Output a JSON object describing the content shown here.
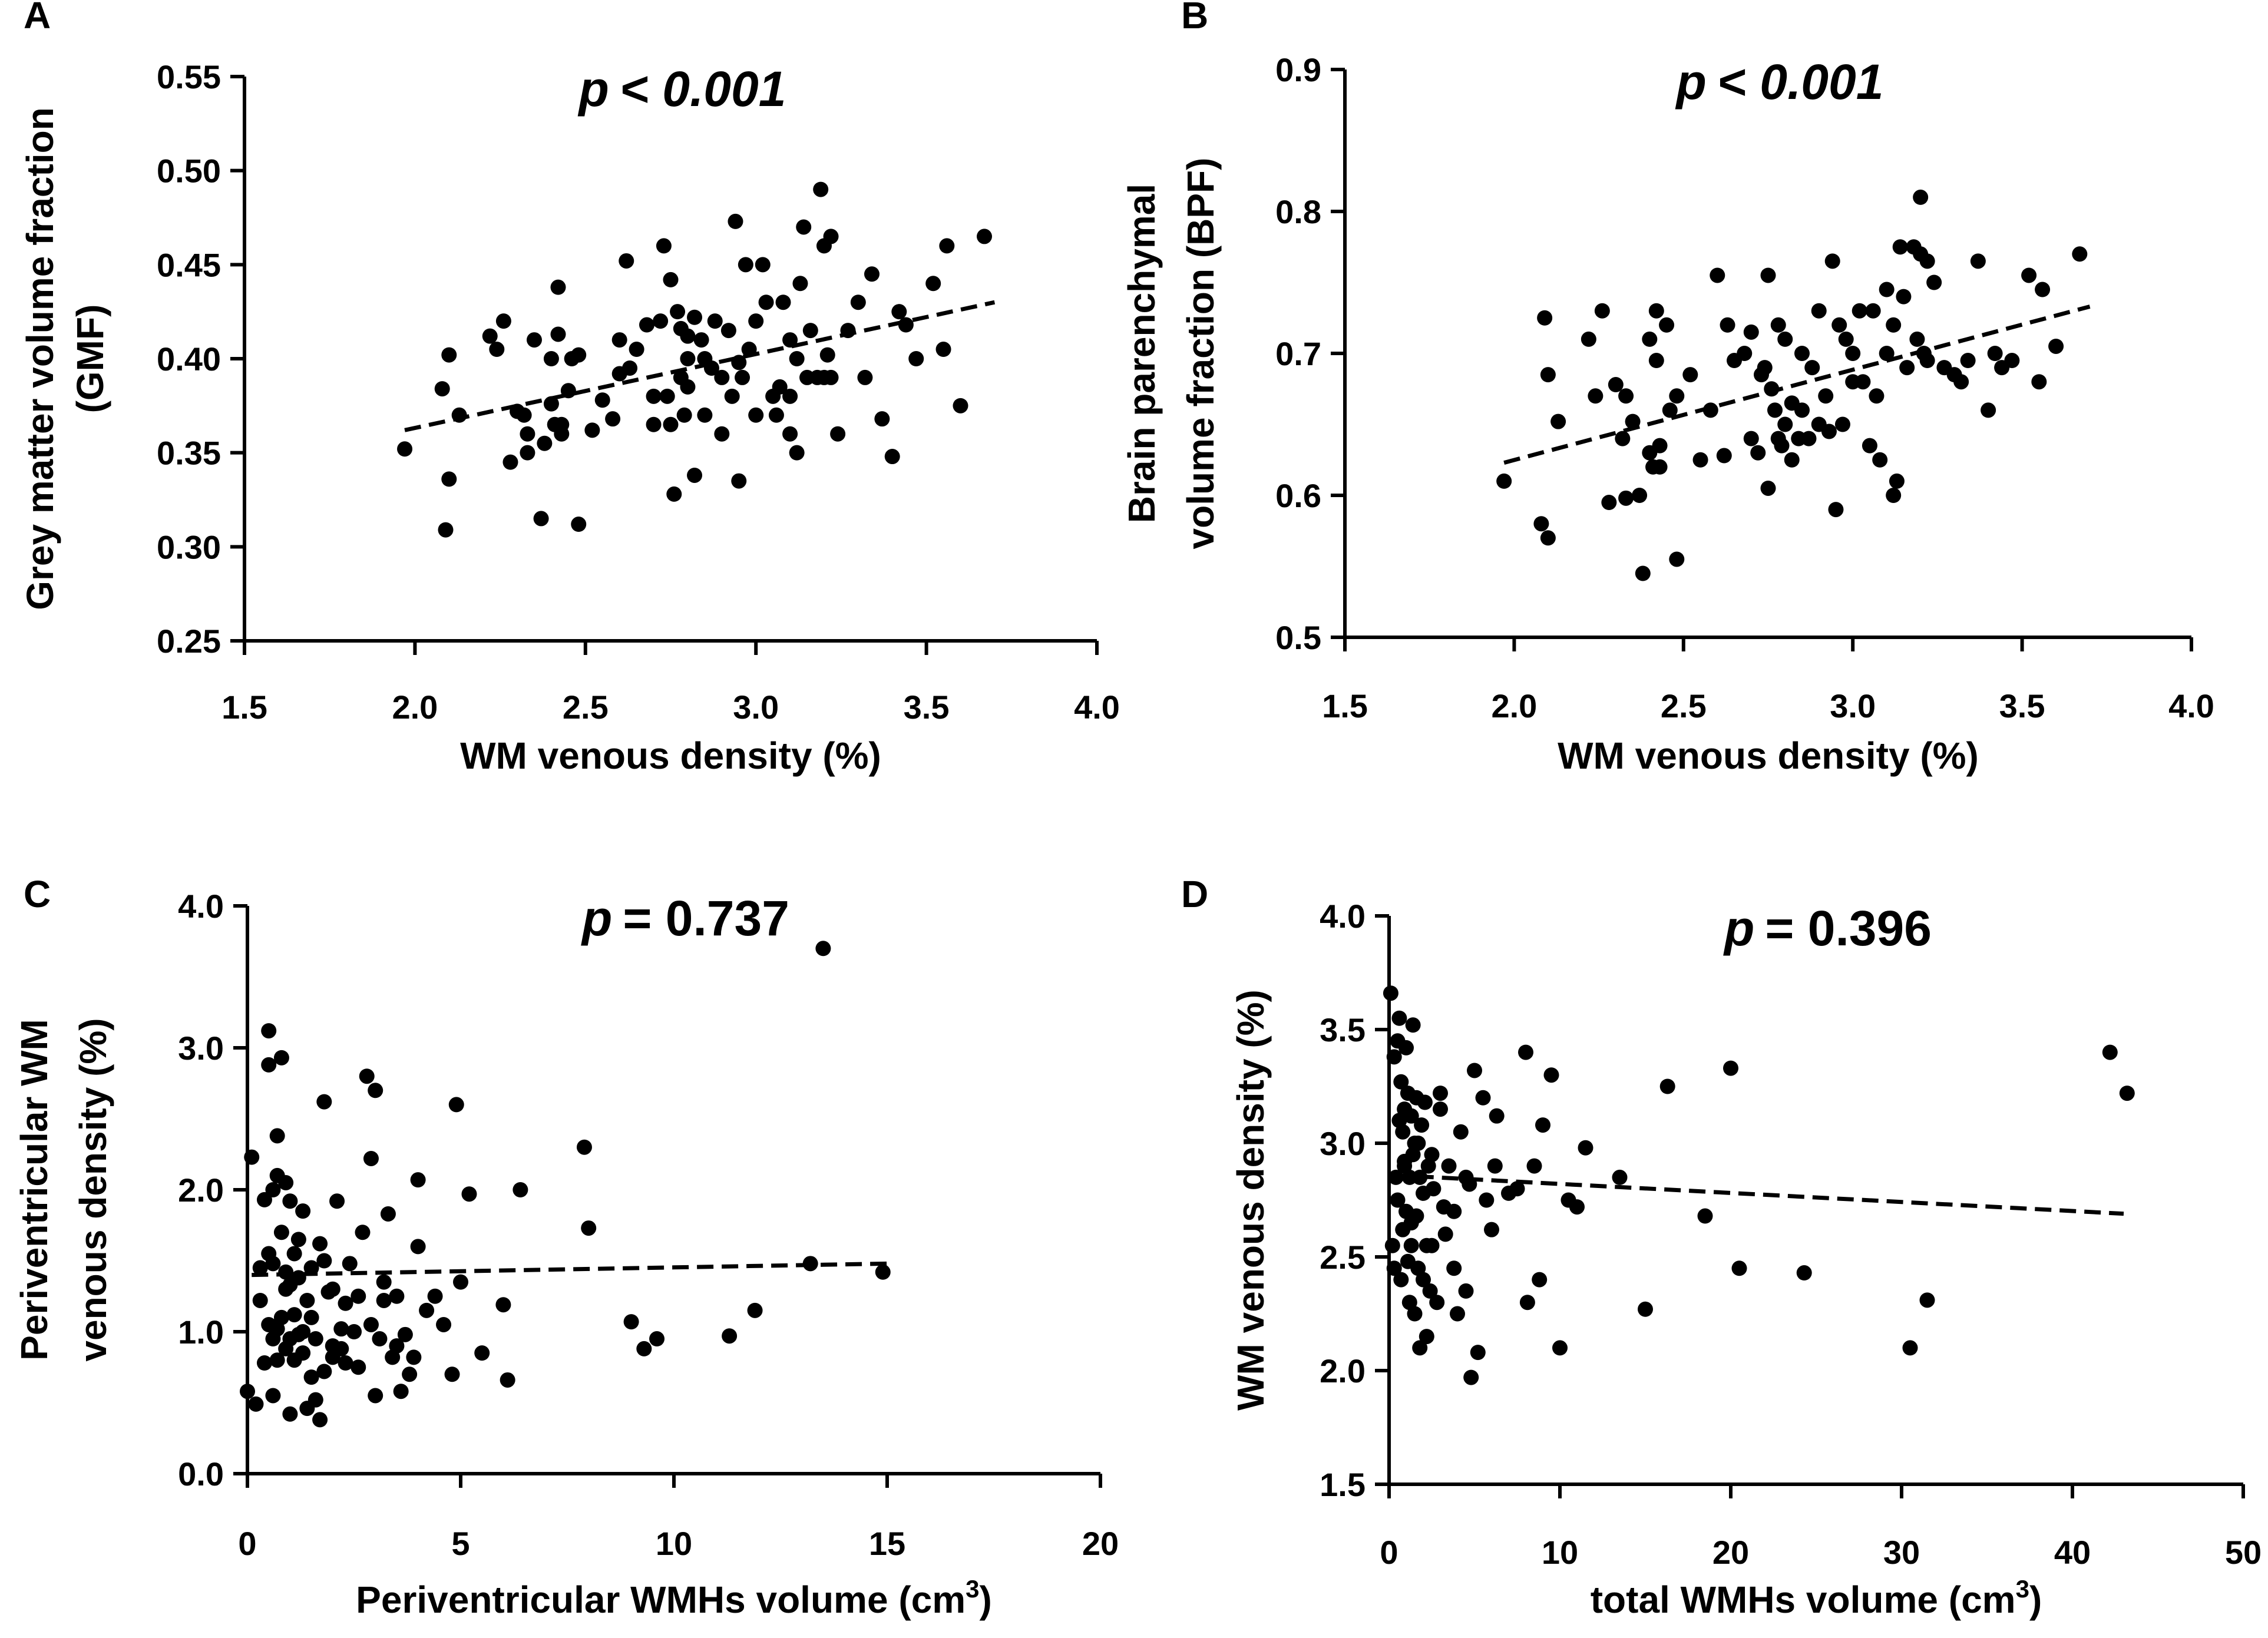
{
  "chart_data": [
    {
      "panel": "A",
      "type": "scatter",
      "title": "p < 0.001",
      "p_label": "p",
      "p_value": "< 0.001",
      "xlabel": "WM venous density (%)",
      "ylabel": [
        "Grey matter volume fraction",
        "(GMF)"
      ],
      "xlim": [
        1.5,
        4.0
      ],
      "ylim": [
        0.25,
        0.55
      ],
      "xticks": [
        "1.5",
        "2.0",
        "2.5",
        "3.0",
        "3.5",
        "4.0"
      ],
      "yticks": [
        "0.25",
        "0.30",
        "0.35",
        "0.40",
        "0.45",
        "0.50",
        "0.55"
      ],
      "fit": {
        "x": [
          1.97,
          3.7
        ],
        "y": [
          0.362,
          0.43
        ]
      },
      "x": [
        1.97,
        2.08,
        2.09,
        2.1,
        2.1,
        2.13,
        2.22,
        2.24,
        2.26,
        2.28,
        2.3,
        2.32,
        2.33,
        2.33,
        2.35,
        2.37,
        2.38,
        2.4,
        2.4,
        2.41,
        2.42,
        2.42,
        2.43,
        2.43,
        2.45,
        2.46,
        2.48,
        2.48,
        2.52,
        2.55,
        2.58,
        2.6,
        2.62,
        2.63,
        2.65,
        2.68,
        2.7,
        2.7,
        2.72,
        2.73,
        2.74,
        2.75,
        2.75,
        2.76,
        2.77,
        2.78,
        2.78,
        2.79,
        2.8,
        2.8,
        2.82,
        2.82,
        2.84,
        2.85,
        2.85,
        2.87,
        2.88,
        2.9,
        2.9,
        2.92,
        2.93,
        2.94,
        2.95,
        2.96,
        2.97,
        2.98,
        3.0,
        3.0,
        3.02,
        3.03,
        3.05,
        3.06,
        3.07,
        3.08,
        3.1,
        3.1,
        3.12,
        3.12,
        3.13,
        3.14,
        3.15,
        3.16,
        3.18,
        3.19,
        3.2,
        3.2,
        3.21,
        3.22,
        3.22,
        3.24,
        3.27,
        3.3,
        3.32,
        3.34,
        3.37,
        3.4,
        3.42,
        3.44,
        3.47,
        3.52,
        3.55,
        3.56,
        3.6,
        3.67,
        2.95,
        2.8,
        3.1,
        2.6
      ],
      "y": [
        0.352,
        0.384,
        0.309,
        0.402,
        0.336,
        0.37,
        0.412,
        0.405,
        0.42,
        0.345,
        0.372,
        0.37,
        0.36,
        0.35,
        0.41,
        0.315,
        0.355,
        0.4,
        0.376,
        0.365,
        0.438,
        0.413,
        0.365,
        0.36,
        0.383,
        0.4,
        0.312,
        0.402,
        0.362,
        0.378,
        0.368,
        0.392,
        0.452,
        0.395,
        0.405,
        0.418,
        0.38,
        0.365,
        0.42,
        0.46,
        0.38,
        0.442,
        0.365,
        0.328,
        0.425,
        0.416,
        0.39,
        0.37,
        0.412,
        0.385,
        0.338,
        0.422,
        0.41,
        0.37,
        0.4,
        0.395,
        0.42,
        0.36,
        0.39,
        0.415,
        0.38,
        0.473,
        0.335,
        0.39,
        0.45,
        0.405,
        0.42,
        0.37,
        0.45,
        0.43,
        0.38,
        0.37,
        0.385,
        0.43,
        0.36,
        0.41,
        0.35,
        0.4,
        0.44,
        0.47,
        0.39,
        0.415,
        0.39,
        0.49,
        0.46,
        0.39,
        0.402,
        0.465,
        0.39,
        0.36,
        0.415,
        0.43,
        0.39,
        0.445,
        0.368,
        0.348,
        0.425,
        0.418,
        0.4,
        0.44,
        0.405,
        0.46,
        0.375,
        0.465,
        0.398,
        0.4,
        0.38,
        0.41
      ]
    },
    {
      "panel": "B",
      "type": "scatter",
      "title": "p < 0.001",
      "p_label": "p",
      "p_value": "< 0.001",
      "xlabel": "WM venous density (%)",
      "ylabel": [
        "Brain parenchymal",
        "volume fraction (BPF)"
      ],
      "xlim": [
        1.5,
        4.0
      ],
      "ylim": [
        0.5,
        0.9
      ],
      "xticks": [
        "1.5",
        "2.0",
        "2.5",
        "3.0",
        "3.5",
        "4.0"
      ],
      "yticks": [
        "0.5",
        "0.6",
        "0.7",
        "0.8",
        "0.9"
      ],
      "fit": {
        "x": [
          1.97,
          3.7
        ],
        "y": [
          0.623,
          0.733
        ]
      },
      "x": [
        1.97,
        2.08,
        2.09,
        2.1,
        2.1,
        2.13,
        2.22,
        2.24,
        2.26,
        2.28,
        2.3,
        2.32,
        2.33,
        2.33,
        2.35,
        2.37,
        2.38,
        2.4,
        2.4,
        2.41,
        2.42,
        2.42,
        2.43,
        2.43,
        2.45,
        2.46,
        2.48,
        2.48,
        2.52,
        2.55,
        2.58,
        2.6,
        2.62,
        2.63,
        2.65,
        2.68,
        2.7,
        2.7,
        2.72,
        2.73,
        2.74,
        2.75,
        2.75,
        2.76,
        2.77,
        2.78,
        2.78,
        2.79,
        2.8,
        2.8,
        2.82,
        2.82,
        2.84,
        2.85,
        2.85,
        2.87,
        2.88,
        2.9,
        2.9,
        2.92,
        2.93,
        2.94,
        2.95,
        2.96,
        2.97,
        2.98,
        3.0,
        3.0,
        3.02,
        3.03,
        3.05,
        3.06,
        3.07,
        3.08,
        3.1,
        3.1,
        3.12,
        3.12,
        3.13,
        3.14,
        3.15,
        3.16,
        3.18,
        3.19,
        3.2,
        3.2,
        3.21,
        3.22,
        3.22,
        3.24,
        3.27,
        3.3,
        3.32,
        3.34,
        3.37,
        3.4,
        3.42,
        3.44,
        3.47,
        3.52,
        3.55,
        3.56,
        3.6,
        3.67
      ],
      "y": [
        0.61,
        0.58,
        0.725,
        0.685,
        0.57,
        0.652,
        0.71,
        0.67,
        0.73,
        0.595,
        0.678,
        0.64,
        0.598,
        0.67,
        0.652,
        0.6,
        0.545,
        0.63,
        0.71,
        0.62,
        0.695,
        0.73,
        0.635,
        0.62,
        0.72,
        0.66,
        0.555,
        0.67,
        0.685,
        0.625,
        0.66,
        0.755,
        0.628,
        0.72,
        0.695,
        0.7,
        0.715,
        0.64,
        0.63,
        0.685,
        0.69,
        0.605,
        0.755,
        0.675,
        0.66,
        0.72,
        0.64,
        0.635,
        0.71,
        0.65,
        0.625,
        0.665,
        0.64,
        0.7,
        0.66,
        0.64,
        0.69,
        0.65,
        0.73,
        0.67,
        0.645,
        0.765,
        0.59,
        0.72,
        0.65,
        0.71,
        0.68,
        0.7,
        0.73,
        0.68,
        0.635,
        0.73,
        0.67,
        0.625,
        0.745,
        0.7,
        0.72,
        0.6,
        0.61,
        0.775,
        0.74,
        0.69,
        0.775,
        0.71,
        0.81,
        0.77,
        0.7,
        0.765,
        0.695,
        0.75,
        0.69,
        0.685,
        0.68,
        0.695,
        0.765,
        0.66,
        0.7,
        0.69,
        0.695,
        0.755,
        0.68,
        0.745,
        0.705,
        0.77
      ]
    },
    {
      "panel": "C",
      "type": "scatter",
      "title": "p = 0.737",
      "p_label": "p",
      "p_value": "= 0.737",
      "xlabel": "Periventricular WMHs volume (cm",
      "xlabel_sup": "3",
      "xlabel_end": ")",
      "ylabel": [
        "Periventricular WM",
        "venous density (%)"
      ],
      "xlim": [
        0,
        20
      ],
      "ylim": [
        0.0,
        4.0
      ],
      "xticks": [
        "0",
        "5",
        "10",
        "15",
        "20"
      ],
      "yticks": [
        "0.0",
        "1.0",
        "2.0",
        "3.0",
        "4.0"
      ],
      "fit": {
        "x": [
          0.1,
          15.0
        ],
        "y": [
          1.4,
          1.48
        ]
      },
      "x": [
        0.0,
        0.1,
        0.2,
        0.3,
        0.3,
        0.4,
        0.4,
        0.5,
        0.5,
        0.5,
        0.6,
        0.6,
        0.6,
        0.7,
        0.7,
        0.7,
        0.8,
        0.8,
        0.8,
        0.9,
        0.9,
        0.9,
        1.0,
        1.0,
        1.0,
        1.1,
        1.1,
        1.1,
        1.2,
        1.2,
        1.3,
        1.3,
        1.4,
        1.4,
        1.5,
        1.5,
        1.6,
        1.6,
        1.7,
        1.7,
        1.8,
        1.8,
        1.9,
        2.0,
        2.0,
        2.1,
        2.2,
        2.2,
        2.3,
        2.4,
        2.5,
        2.6,
        2.7,
        2.8,
        2.9,
        3.0,
        3.0,
        3.1,
        3.2,
        3.3,
        3.4,
        3.5,
        3.6,
        3.7,
        3.8,
        3.9,
        4.0,
        4.2,
        4.4,
        4.6,
        4.8,
        4.9,
        5.0,
        5.2,
        5.5,
        6.0,
        6.1,
        6.4,
        7.9,
        8.0,
        9.0,
        9.3,
        9.6,
        11.3,
        11.9,
        13.2,
        13.5,
        14.9,
        0.5,
        0.6,
        0.7,
        0.9,
        1.0,
        1.2,
        1.3,
        1.5,
        1.8,
        2.0,
        2.3,
        2.6,
        2.9,
        3.2,
        3.5,
        4.0
      ],
      "y": [
        0.58,
        2.23,
        0.49,
        1.45,
        1.22,
        1.93,
        0.78,
        2.88,
        3.12,
        1.05,
        2.0,
        1.48,
        0.55,
        0.8,
        2.38,
        1.02,
        2.93,
        1.7,
        1.1,
        2.05,
        0.88,
        1.42,
        0.42,
        1.92,
        1.33,
        1.12,
        0.8,
        1.55,
        1.38,
        0.98,
        1.0,
        1.85,
        0.46,
        1.22,
        0.68,
        1.45,
        0.52,
        0.95,
        0.38,
        1.62,
        2.62,
        0.72,
        1.28,
        0.82,
        1.3,
        1.92,
        0.88,
        1.02,
        0.78,
        1.48,
        1.0,
        1.25,
        1.7,
        2.8,
        2.22,
        0.55,
        2.7,
        0.95,
        1.22,
        1.83,
        0.82,
        1.25,
        0.58,
        0.98,
        0.7,
        0.82,
        2.07,
        1.15,
        1.25,
        1.05,
        0.7,
        2.6,
        1.35,
        1.97,
        0.85,
        1.19,
        0.66,
        2.0,
        2.3,
        1.73,
        1.07,
        0.88,
        0.95,
        0.97,
        1.15,
        1.48,
        3.7,
        1.42,
        1.55,
        0.95,
        2.1,
        1.3,
        0.95,
        1.65,
        0.85,
        1.1,
        1.5,
        0.9,
        1.2,
        0.75,
        1.05,
        1.35,
        0.9,
        1.6
      ]
    },
    {
      "panel": "D",
      "type": "scatter",
      "title": "p = 0.396",
      "p_label": "p",
      "p_value": "= 0.396",
      "xlabel": "total WMHs volume (cm",
      "xlabel_sup": "3",
      "xlabel_end": ")",
      "ylabel": [
        "WM venous density (%)"
      ],
      "xlim": [
        0,
        50
      ],
      "ylim": [
        1.5,
        4.0
      ],
      "xticks": [
        "0",
        "10",
        "20",
        "30",
        "40",
        "50"
      ],
      "yticks": [
        "1.5",
        "2.0",
        "2.5",
        "3.0",
        "3.5",
        "4.0"
      ],
      "fit": {
        "x": [
          0.2,
          43.0
        ],
        "y": [
          2.86,
          2.69
        ]
      },
      "x": [
        0.1,
        0.2,
        0.3,
        0.3,
        0.4,
        0.5,
        0.5,
        0.6,
        0.7,
        0.7,
        0.8,
        0.8,
        0.9,
        0.9,
        1.0,
        1.0,
        1.1,
        1.1,
        1.2,
        1.2,
        1.3,
        1.3,
        1.4,
        1.4,
        1.5,
        1.5,
        1.6,
        1.6,
        1.7,
        1.8,
        1.8,
        1.9,
        2.0,
        2.0,
        2.1,
        2.2,
        2.3,
        2.4,
        2.5,
        2.5,
        2.6,
        2.8,
        3.0,
        3.2,
        3.3,
        3.5,
        3.8,
        4.0,
        4.2,
        4.5,
        4.7,
        4.8,
        5.0,
        5.2,
        5.5,
        5.7,
        6.0,
        6.3,
        7.0,
        7.5,
        8.0,
        8.1,
        8.5,
        8.8,
        9.0,
        9.5,
        10.0,
        10.5,
        11.0,
        11.5,
        13.5,
        15.0,
        16.3,
        18.5,
        20.0,
        20.5,
        24.3,
        30.5,
        31.5,
        42.2,
        43.2,
        0.6,
        0.9,
        1.3,
        1.7,
        2.2,
        3.0,
        3.8,
        4.5,
        6.2
      ],
      "y": [
        3.66,
        2.55,
        3.38,
        2.45,
        2.85,
        3.45,
        2.75,
        3.55,
        2.4,
        3.27,
        2.62,
        3.05,
        2.92,
        3.15,
        2.7,
        3.42,
        2.48,
        3.22,
        2.85,
        2.3,
        3.12,
        2.55,
        2.95,
        3.52,
        2.25,
        3.0,
        3.2,
        2.68,
        2.45,
        2.85,
        2.1,
        3.08,
        2.4,
        2.78,
        3.18,
        2.15,
        2.9,
        2.35,
        2.95,
        2.55,
        2.8,
        2.3,
        3.22,
        2.72,
        2.6,
        2.9,
        2.45,
        2.25,
        3.05,
        2.35,
        2.82,
        1.97,
        3.32,
        2.08,
        3.2,
        2.75,
        2.62,
        3.12,
        2.78,
        2.8,
        3.4,
        2.3,
        2.9,
        2.4,
        3.08,
        3.3,
        2.1,
        2.75,
        2.72,
        2.98,
        2.85,
        2.27,
        3.25,
        2.68,
        3.33,
        2.45,
        2.43,
        2.1,
        2.31,
        3.4,
        3.22,
        3.1,
        2.9,
        2.65,
        3.0,
        2.55,
        3.15,
        2.7,
        2.85,
        2.9
      ]
    }
  ]
}
